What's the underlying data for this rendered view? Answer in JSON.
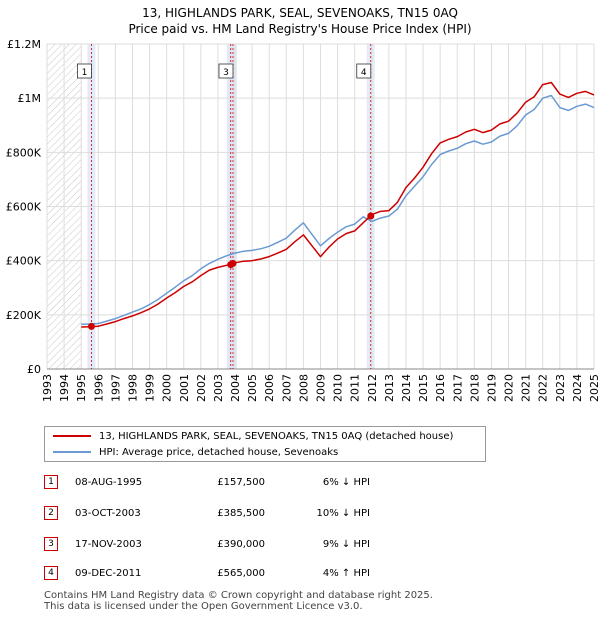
{
  "chart_data": {
    "type": "line",
    "title": "13, HIGHLANDS PARK, SEAL, SEVENOAKS, TN15 0AQ",
    "subtitle": "Price paid vs. HM Land Registry's House Price Index (HPI)",
    "xlabel": "",
    "ylabel": "",
    "xlim": [
      1993,
      2025
    ],
    "ylim": [
      0,
      1200000
    ],
    "x_ticks": [
      "1993",
      "1994",
      "1995",
      "1996",
      "1997",
      "1998",
      "1999",
      "2000",
      "2001",
      "2002",
      "2003",
      "2004",
      "2005",
      "2006",
      "2007",
      "2008",
      "2009",
      "2010",
      "2011",
      "2012",
      "2013",
      "2014",
      "2015",
      "2016",
      "2017",
      "2018",
      "2019",
      "2020",
      "2021",
      "2022",
      "2023",
      "2024",
      "2025"
    ],
    "y_ticks": [
      {
        "value": 0,
        "label": "£0"
      },
      {
        "value": 200000,
        "label": "£200K"
      },
      {
        "value": 400000,
        "label": "£400K"
      },
      {
        "value": 600000,
        "label": "£600K"
      },
      {
        "value": 800000,
        "label": "£800K"
      },
      {
        "value": 1000000,
        "label": "£1M"
      },
      {
        "value": 1200000,
        "label": "£1.2M"
      }
    ],
    "data_start_year": 1995,
    "hatched_until_year": 1995,
    "series": [
      {
        "name": "13, HIGHLANDS PARK, SEAL, SEVENOAKS, TN15 0AQ (detached house)",
        "color": "#cc0000",
        "x": [
          1995.0,
          1995.5,
          1996.0,
          1996.5,
          1997.0,
          1997.5,
          1998.0,
          1998.5,
          1999.0,
          1999.5,
          2000.0,
          2000.5,
          2001.0,
          2001.5,
          2002.0,
          2002.5,
          2003.0,
          2003.5,
          2004.0,
          2004.5,
          2005.0,
          2005.5,
          2006.0,
          2006.5,
          2007.0,
          2007.5,
          2008.0,
          2008.5,
          2009.0,
          2009.5,
          2010.0,
          2010.5,
          2011.0,
          2011.5,
          2012.0,
          2012.5,
          2013.0,
          2013.5,
          2014.0,
          2014.5,
          2015.0,
          2015.5,
          2016.0,
          2016.5,
          2017.0,
          2017.5,
          2018.0,
          2018.5,
          2019.0,
          2019.5,
          2020.0,
          2020.5,
          2021.0,
          2021.5,
          2022.0,
          2022.5,
          2023.0,
          2023.5,
          2024.0,
          2024.5,
          2025.0
        ],
        "y": [
          155000,
          156000,
          158000,
          166000,
          175000,
          186000,
          196000,
          208000,
          222000,
          240000,
          262000,
          282000,
          305000,
          322000,
          345000,
          365000,
          375000,
          383000,
          392000,
          398000,
          400000,
          406000,
          415000,
          428000,
          442000,
          470000,
          495000,
          455000,
          415000,
          450000,
          480000,
          500000,
          510000,
          540000,
          570000,
          582000,
          585000,
          615000,
          670000,
          705000,
          745000,
          795000,
          835000,
          848000,
          858000,
          875000,
          885000,
          873000,
          882000,
          905000,
          915000,
          945000,
          985000,
          1005000,
          1050000,
          1058000,
          1015000,
          1003000,
          1018000,
          1025000,
          1012000
        ]
      },
      {
        "name": "HPI: Average price, detached house, Sevenoaks",
        "color": "#6b9bd2",
        "x": [
          1995.0,
          1995.5,
          1996.0,
          1996.5,
          1997.0,
          1997.5,
          1998.0,
          1998.5,
          1999.0,
          1999.5,
          2000.0,
          2000.5,
          2001.0,
          2001.5,
          2002.0,
          2002.5,
          2003.0,
          2003.5,
          2004.0,
          2004.5,
          2005.0,
          2005.5,
          2006.0,
          2006.5,
          2007.0,
          2007.5,
          2008.0,
          2008.5,
          2009.0,
          2009.5,
          2010.0,
          2010.5,
          2011.0,
          2011.5,
          2012.0,
          2012.5,
          2013.0,
          2013.5,
          2014.0,
          2014.5,
          2015.0,
          2015.5,
          2016.0,
          2016.5,
          2017.0,
          2017.5,
          2018.0,
          2018.5,
          2019.0,
          2019.5,
          2020.0,
          2020.5,
          2021.0,
          2021.5,
          2022.0,
          2022.5,
          2023.0,
          2023.5,
          2024.0,
          2024.5,
          2025.0
        ],
        "y": [
          165000,
          166000,
          168000,
          177000,
          186000,
          198000,
          210000,
          222000,
          238000,
          257000,
          280000,
          302000,
          326000,
          345000,
          370000,
          390000,
          405000,
          418000,
          428000,
          435000,
          438000,
          444000,
          453000,
          468000,
          483000,
          513000,
          540000,
          497000,
          455000,
          482000,
          505000,
          525000,
          535000,
          562000,
          545000,
          557000,
          565000,
          590000,
          640000,
          675000,
          710000,
          755000,
          792000,
          805000,
          815000,
          832000,
          842000,
          830000,
          838000,
          860000,
          870000,
          898000,
          938000,
          958000,
          1000000,
          1010000,
          965000,
          955000,
          970000,
          978000,
          965000
        ]
      }
    ],
    "transactions": [
      {
        "num": "1",
        "date": "08-AUG-1995",
        "year": 1995.6,
        "price": 157500,
        "price_label": "£157,500",
        "delta": "6% ↓ HPI"
      },
      {
        "num": "2",
        "date": "03-OCT-2003",
        "year": 2003.75,
        "price": 385500,
        "price_label": "£385,500",
        "delta": "10% ↓ HPI"
      },
      {
        "num": "3",
        "date": "17-NOV-2003",
        "year": 2003.88,
        "price": 390000,
        "price_label": "£390,000",
        "delta": "9% ↓ HPI"
      },
      {
        "num": "4",
        "date": "09-DEC-2011",
        "year": 2011.94,
        "price": 565000,
        "price_label": "£565,000",
        "delta": "4% ↑ HPI"
      }
    ],
    "chart_label_numbers": [
      "1",
      "3",
      "4"
    ]
  },
  "legend": {
    "property_label": "13, HIGHLANDS PARK, SEAL, SEVENOAKS, TN15 0AQ (detached house)",
    "hpi_label": "HPI: Average price, detached house, Sevenoaks"
  },
  "footer": {
    "line1": "Contains HM Land Registry data © Crown copyright and database right 2025.",
    "line2": "This data is licensed under the Open Government Licence v3.0."
  },
  "colors": {
    "property": "#cc0000",
    "hpi": "#6b9bd2",
    "grid": "#dddddd",
    "band": "#dde6f5"
  }
}
